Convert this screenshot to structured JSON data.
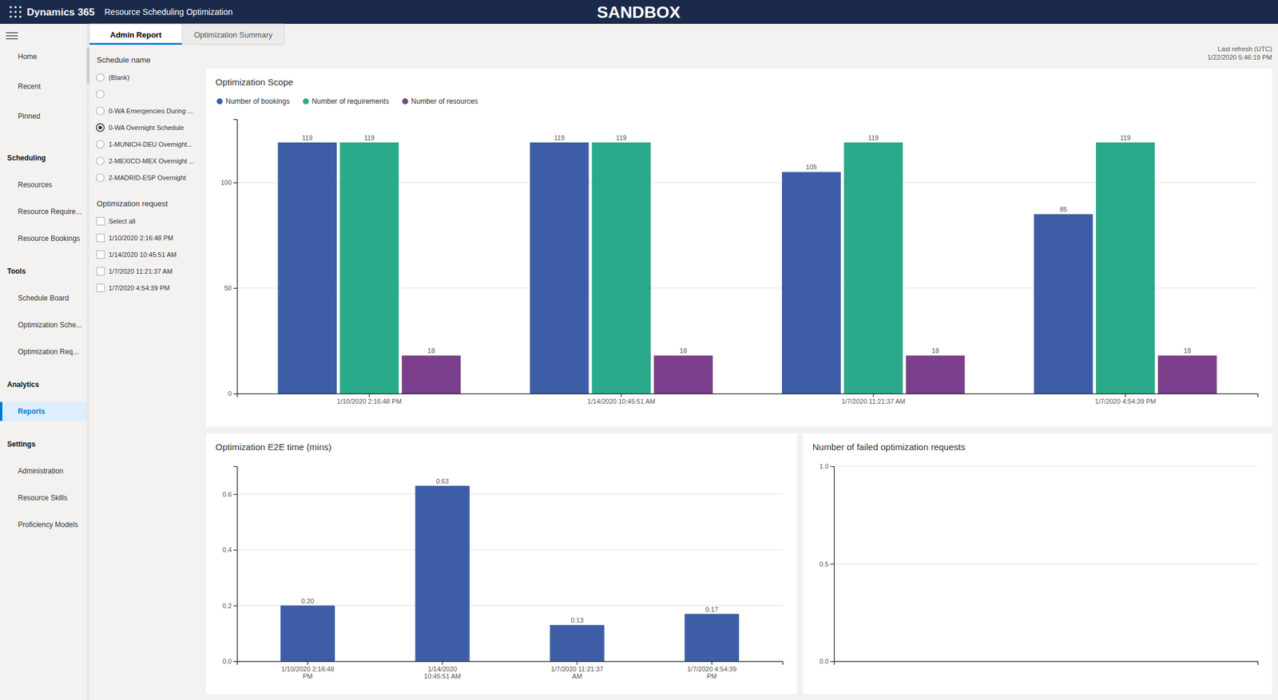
{
  "page": {
    "app_title": "Dynamics 365",
    "title": "Resource Scheduling Optimization",
    "sandbox_text": "SANDBOX",
    "nav_header_bg": "#1b2a4a",
    "content_bg": "#f3f2f1",
    "panel_bg": "#ffffff",
    "tabs": [
      "Admin Report",
      "Optimization Summary"
    ],
    "last_refresh": "Last refresh (UTC)\n1/22/2020 5:46:19 PM",
    "sidebar": [
      {
        "items": [
          "Home",
          "Recent",
          "Pinned"
        ]
      },
      {
        "heading": "Scheduling",
        "items": [
          "Resources",
          "Resource Require...",
          "Resource Bookings"
        ]
      },
      {
        "heading": "Tools",
        "items": [
          "Schedule Board",
          "Optimization Sche...",
          "Optimization Req..."
        ]
      },
      {
        "heading": "Analytics",
        "items": [
          "Reports"
        ]
      },
      {
        "heading": "Settings",
        "items": [
          "Administration",
          "Resource Skills",
          "Proficiency Models"
        ]
      }
    ],
    "sidebar_selected": "Reports",
    "filters": [
      {
        "title": "Schedule name",
        "kind": "radio",
        "options": [
          "(Blank)",
          null,
          "0-WA Emergencies During ...",
          "0-WA Overnight Schedule",
          "1-MUNICH-DEU Overnight...",
          "2-MEXICO-MEX Overnight ...",
          "2-MADRID-ESP Overnight"
        ],
        "selected": "0-WA Overnight Schedule"
      },
      {
        "title": "Optimization request",
        "kind": "checkbox",
        "options": [
          "Select all",
          "1/10/2020 2:16:48 PM",
          "1/14/2020 10:45:51 AM",
          "1/7/2020 11:21:37 AM",
          "1/7/2020 4:54:39 PM"
        ]
      }
    ]
  },
  "chart_data": [
    {
      "type": "bar",
      "title": "Optimization Scope",
      "categories": [
        "1/10/2020 2:16:48 PM",
        "1/14/2020 10:45:51 AM",
        "1/7/2020 11:21:37 AM",
        "1/7/2020 4:54:39 PM"
      ],
      "series": [
        {
          "name": "Number of bookings",
          "color": "#3d5ea6",
          "values": [
            119,
            119,
            105,
            85
          ]
        },
        {
          "name": "Number of requirements",
          "color": "#2aaa8a",
          "values": [
            119,
            119,
            119,
            119
          ]
        },
        {
          "name": "Number of resources",
          "color": "#7b3f8c",
          "values": [
            18,
            18,
            18,
            18
          ]
        }
      ],
      "ylim": [
        0,
        130
      ],
      "yticks": [
        0,
        50,
        100
      ],
      "grid": true,
      "data_labels": true,
      "legend": "top-left"
    },
    {
      "type": "bar",
      "title": "Optimization E2E time (mins)",
      "categories": [
        "1/10/2020 2:16:48\nPM",
        "1/14/2020\n10:45:51 AM",
        "1/7/2020 11:21:37\nAM",
        "1/7/2020 4:54:39\nPM"
      ],
      "values": [
        0.2,
        0.63,
        0.13,
        0.17
      ],
      "value_labels": [
        "0.20",
        "0.63",
        "0.13",
        "0.17"
      ],
      "color": "#3d5ea6",
      "ylim": [
        0.0,
        0.7
      ],
      "yticks": [
        {
          "value": 0.0,
          "label": "0.0"
        },
        0.2,
        0.4,
        0.6
      ],
      "grid": true,
      "data_labels": true
    },
    {
      "type": "bar",
      "title": "Number of failed optimization requests",
      "categories": [],
      "values": [],
      "ylim": [
        0.0,
        1.0
      ],
      "yticks": [
        {
          "value": 0.0,
          "label": "0.0"
        },
        0.5,
        {
          "value": 1.0,
          "label": "1.0"
        }
      ],
      "grid": true,
      "tick_labels": "y"
    }
  ]
}
